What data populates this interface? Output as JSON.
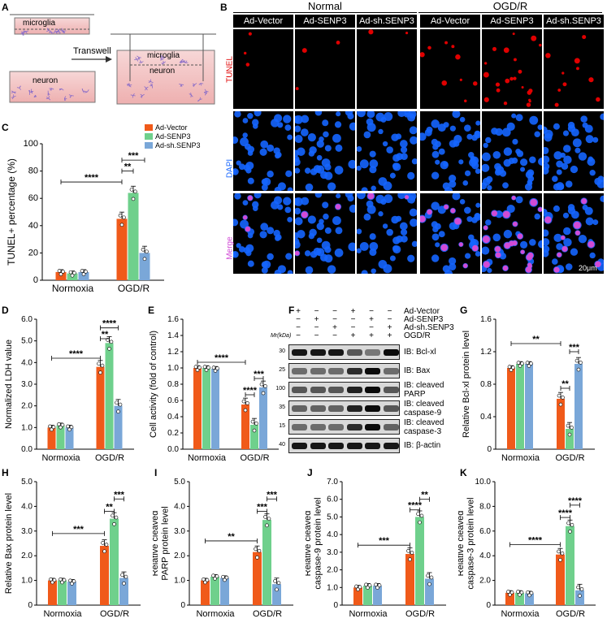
{
  "panels": {
    "A": "A",
    "B": "B",
    "C": "C",
    "D": "D",
    "E": "E",
    "F": "F",
    "G": "G",
    "H": "H",
    "I": "I",
    "J": "J",
    "K": "K"
  },
  "schematic": {
    "microglia": "microglia",
    "neuron": "neuron",
    "transwell": "Transwell"
  },
  "microscopy": {
    "groups": [
      "Normal",
      "OGD/R"
    ],
    "columns": [
      "Ad-Vector",
      "Ad-SENP3",
      "Ad-sh.SENP3",
      "Ad-Vector",
      "Ad-SENP3",
      "Ad-sh.SENP3"
    ],
    "rows": [
      "TUNEL",
      "DAPI",
      "Merge"
    ],
    "scale": "20μm",
    "row_colors": {
      "TUNEL": "#e00000",
      "DAPI": "#1565ff",
      "Merge": "#d14bd6"
    },
    "tunel_counts": [
      3,
      3,
      2,
      9,
      22,
      10
    ]
  },
  "legend": [
    {
      "name": "Ad-Vector",
      "color": "#f05a1a"
    },
    {
      "name": "Ad-SENP3",
      "color": "#6fd08c"
    },
    {
      "name": "Ad-sh.SENP3",
      "color": "#7aa7d8"
    }
  ],
  "western": {
    "treatments": [
      "Ad-Vector",
      "Ad-SENP3",
      "Ad-sh.SENP3",
      "OGD/R"
    ],
    "signs": [
      [
        "+",
        "−",
        "−",
        "+",
        "−",
        "−"
      ],
      [
        "−",
        "+",
        "−",
        "−",
        "+",
        "−"
      ],
      [
        "−",
        "−",
        "+",
        "−",
        "−",
        "+"
      ],
      [
        "−",
        "−",
        "−",
        "+",
        "+",
        "+"
      ]
    ],
    "mr_header": "Mr(kDa)",
    "bands": [
      {
        "mr": "30",
        "label": "IB: Bcl-xl",
        "intensity": [
          0.9,
          0.9,
          0.9,
          0.6,
          0.45,
          0.95
        ]
      },
      {
        "mr": "25",
        "label": "IB: Bax",
        "intensity": [
          0.5,
          0.5,
          0.5,
          0.8,
          0.95,
          0.5
        ]
      },
      {
        "mr": "100",
        "label": "IB: cleaved PARP",
        "intensity": [
          0.6,
          0.6,
          0.6,
          0.85,
          0.95,
          0.6
        ]
      },
      {
        "mr": "35",
        "label": "IB: cleaved caspase-9",
        "intensity": [
          0.55,
          0.55,
          0.55,
          0.85,
          0.95,
          0.6
        ]
      },
      {
        "mr": "15",
        "label": "IB: cleaved caspase-3",
        "intensity": [
          0.5,
          0.5,
          0.5,
          0.8,
          0.95,
          0.55
        ]
      },
      {
        "mr": "40",
        "label": "IB: β-actin",
        "intensity": [
          0.9,
          0.9,
          0.9,
          0.9,
          0.9,
          0.9
        ]
      }
    ]
  },
  "chart_data": [
    {
      "id": "C",
      "type": "bar",
      "ylabel": "TUNEL+ percentage (%)",
      "ylim": [
        0,
        100
      ],
      "yticks": [
        0,
        20,
        40,
        60,
        80,
        100
      ],
      "categories": [
        "Normoxia",
        "OGD/R"
      ],
      "series": [
        {
          "name": "Ad-Vector",
          "values": [
            6,
            45
          ]
        },
        {
          "name": "Ad-SENP3",
          "values": [
            5,
            64
          ]
        },
        {
          "name": "Ad-sh.SENP3",
          "values": [
            6,
            20
          ]
        }
      ],
      "sig": [
        {
          "from": [
            0,
            0
          ],
          "to": [
            1,
            0
          ],
          "label": "****",
          "y": 72
        },
        {
          "from": [
            1,
            0
          ],
          "to": [
            1,
            1
          ],
          "label": "**",
          "y": 80
        },
        {
          "from": [
            1,
            0
          ],
          "to": [
            1,
            2
          ],
          "label": "***",
          "y": 88
        }
      ]
    },
    {
      "id": "D",
      "type": "bar",
      "ylabel": "Normalized LDH value",
      "ylim": [
        0,
        6
      ],
      "yticks": [
        "0.0",
        "1.0",
        "2.0",
        "3.0",
        "4.0",
        "5.0",
        "6.0"
      ],
      "categories": [
        "Normoxia",
        "OGD/R"
      ],
      "series": [
        {
          "name": "Ad-Vector",
          "values": [
            1.0,
            3.8
          ]
        },
        {
          "name": "Ad-SENP3",
          "values": [
            1.1,
            4.9
          ]
        },
        {
          "name": "Ad-sh.SENP3",
          "values": [
            1.0,
            2.0
          ]
        }
      ],
      "sig": [
        {
          "from": [
            0,
            0
          ],
          "to": [
            1,
            0
          ],
          "label": "****",
          "y": 4.2
        },
        {
          "from": [
            1,
            0
          ],
          "to": [
            1,
            1
          ],
          "label": "**",
          "y": 5.1
        },
        {
          "from": [
            1,
            0
          ],
          "to": [
            1,
            2
          ],
          "label": "****",
          "y": 5.6
        }
      ]
    },
    {
      "id": "E",
      "type": "bar",
      "ylabel": "Cell activity (fold of control)",
      "ylim": [
        0,
        1.6
      ],
      "yticks": [
        "0.0",
        "0.2",
        "0.4",
        "0.6",
        "0.8",
        "1.0",
        "1.2",
        "1.4",
        "1.6"
      ],
      "categories": [
        "Normoxia",
        "OGD/R"
      ],
      "series": [
        {
          "name": "Ad-Vector",
          "values": [
            1.0,
            0.55
          ]
        },
        {
          "name": "Ad-SENP3",
          "values": [
            1.0,
            0.3
          ]
        },
        {
          "name": "Ad-sh.SENP3",
          "values": [
            0.99,
            0.76
          ]
        }
      ],
      "sig": [
        {
          "from": [
            0,
            0
          ],
          "to": [
            1,
            0
          ],
          "label": "****",
          "y": 1.07
        },
        {
          "from": [
            1,
            0
          ],
          "to": [
            1,
            1
          ],
          "label": "****",
          "y": 0.67
        },
        {
          "from": [
            1,
            1
          ],
          "to": [
            1,
            2
          ],
          "label": "***",
          "y": 0.87
        }
      ]
    },
    {
      "id": "G",
      "type": "bar",
      "ylabel": "Relative Bcl-xl protein level",
      "ylim": [
        0,
        1.6
      ],
      "yticks": [
        "0",
        "0.4",
        "0.8",
        "1.2",
        "1.6"
      ],
      "categories": [
        "Normoxia",
        "OGD/R"
      ],
      "series": [
        {
          "name": "Ad-Vector",
          "values": [
            1.0,
            0.62
          ]
        },
        {
          "name": "Ad-SENP3",
          "values": [
            1.05,
            0.25
          ]
        },
        {
          "name": "Ad-sh.SENP3",
          "values": [
            1.05,
            1.05
          ]
        }
      ],
      "sig": [
        {
          "from": [
            0,
            0
          ],
          "to": [
            1,
            0
          ],
          "label": "**",
          "y": 1.3
        },
        {
          "from": [
            1,
            0
          ],
          "to": [
            1,
            1
          ],
          "label": "**",
          "y": 0.75
        },
        {
          "from": [
            1,
            1
          ],
          "to": [
            1,
            2
          ],
          "label": "***",
          "y": 1.2
        }
      ]
    },
    {
      "id": "H",
      "type": "bar",
      "ylabel": "Relative Bax protein level",
      "ylim": [
        0,
        5
      ],
      "yticks": [
        "0",
        "1.0",
        "2.0",
        "3.0",
        "4.0",
        "5.0"
      ],
      "categories": [
        "Normoxia",
        "OGD/R"
      ],
      "series": [
        {
          "name": "Ad-Vector",
          "values": [
            1.0,
            2.4
          ]
        },
        {
          "name": "Ad-SENP3",
          "values": [
            1.0,
            3.5
          ]
        },
        {
          "name": "Ad-sh.SENP3",
          "values": [
            0.95,
            1.1
          ]
        }
      ],
      "sig": [
        {
          "from": [
            0,
            0
          ],
          "to": [
            1,
            0
          ],
          "label": "***",
          "y": 2.9
        },
        {
          "from": [
            1,
            0
          ],
          "to": [
            1,
            1
          ],
          "label": "**",
          "y": 3.8
        },
        {
          "from": [
            1,
            1
          ],
          "to": [
            1,
            2
          ],
          "label": "***",
          "y": 4.3
        }
      ]
    },
    {
      "id": "I",
      "type": "bar",
      "ylabel": "Relative cleaved PARP protein level",
      "ylim": [
        0,
        5
      ],
      "yticks": [
        "0",
        "1.0",
        "2.0",
        "3.0",
        "4.0",
        "5.0"
      ],
      "categories": [
        "Normoxia",
        "OGD/R"
      ],
      "series": [
        {
          "name": "Ad-Vector",
          "values": [
            1.0,
            2.15
          ]
        },
        {
          "name": "Ad-SENP3",
          "values": [
            1.15,
            3.45
          ]
        },
        {
          "name": "Ad-sh.SENP3",
          "values": [
            1.1,
            0.85
          ]
        }
      ],
      "sig": [
        {
          "from": [
            0,
            0
          ],
          "to": [
            1,
            0
          ],
          "label": "**",
          "y": 2.6
        },
        {
          "from": [
            1,
            0
          ],
          "to": [
            1,
            1
          ],
          "label": "***",
          "y": 3.8
        },
        {
          "from": [
            1,
            1
          ],
          "to": [
            1,
            2
          ],
          "label": "***",
          "y": 4.3
        }
      ]
    },
    {
      "id": "J",
      "type": "bar",
      "ylabel": "Relative cleaved caspase-9 protein level",
      "ylim": [
        0,
        7
      ],
      "yticks": [
        "0",
        "1.0",
        "2.0",
        "3.0",
        "4.0",
        "5.0",
        "6.0",
        "7.0"
      ],
      "categories": [
        "Normoxia",
        "OGD/R"
      ],
      "series": [
        {
          "name": "Ad-Vector",
          "values": [
            1.0,
            2.9
          ]
        },
        {
          "name": "Ad-SENP3",
          "values": [
            1.1,
            5.0
          ]
        },
        {
          "name": "Ad-sh.SENP3",
          "values": [
            1.1,
            1.5
          ]
        }
      ],
      "sig": [
        {
          "from": [
            0,
            0
          ],
          "to": [
            1,
            0
          ],
          "label": "***",
          "y": 3.4
        },
        {
          "from": [
            1,
            0
          ],
          "to": [
            1,
            1
          ],
          "label": "****",
          "y": 5.4
        },
        {
          "from": [
            1,
            1
          ],
          "to": [
            1,
            2
          ],
          "label": "**",
          "y": 6.0
        }
      ]
    },
    {
      "id": "K",
      "type": "bar",
      "ylabel": "Relative cleaved caspase-3 protein level",
      "ylim": [
        0,
        10
      ],
      "yticks": [
        "0",
        "2.0",
        "4.0",
        "6.0",
        "8.0",
        "10.0"
      ],
      "categories": [
        "Normoxia",
        "OGD/R"
      ],
      "series": [
        {
          "name": "Ad-Vector",
          "values": [
            1.0,
            4.1
          ]
        },
        {
          "name": "Ad-SENP3",
          "values": [
            1.0,
            6.4
          ]
        },
        {
          "name": "Ad-sh.SENP3",
          "values": [
            0.95,
            1.2
          ]
        }
      ],
      "sig": [
        {
          "from": [
            0,
            0
          ],
          "to": [
            1,
            0
          ],
          "label": "****",
          "y": 4.9
        },
        {
          "from": [
            1,
            0
          ],
          "to": [
            1,
            1
          ],
          "label": "****",
          "y": 7.1
        },
        {
          "from": [
            1,
            1
          ],
          "to": [
            1,
            2
          ],
          "label": "****",
          "y": 8.1
        }
      ]
    }
  ]
}
